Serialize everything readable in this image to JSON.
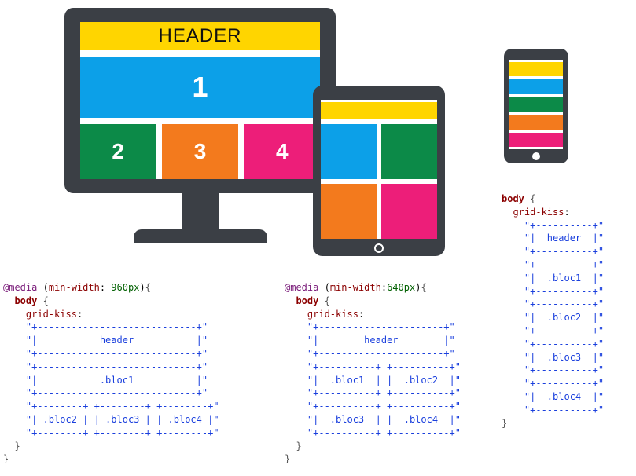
{
  "colors": {
    "device_frame": "#3b3f45",
    "header": "#ffd500",
    "bloc1": "#0ca0e8",
    "bloc2": "#0c8a48",
    "bloc3": "#f37a1d",
    "bloc4": "#ed1e79"
  },
  "monitor": {
    "header_label": "HEADER",
    "bloc1_label": "1",
    "bloc2_label": "2",
    "bloc3_label": "3",
    "bloc4_label": "4"
  },
  "code": {
    "desktop": {
      "media_line_pre": "@media",
      "media_cond_prop": "min-width",
      "media_cond_val": "960px",
      "body_kw": "body",
      "prop": "grid-kiss",
      "rows": [
        "\"+----------------------------+\"",
        "\"|           header           |\"",
        "\"+----------------------------+\"",
        "\"+----------------------------+\"",
        "\"|           .bloc1           |\"",
        "\"+----------------------------+\"",
        "\"+--------+ +--------+ +--------+\"",
        "\"| .bloc2 | | .bloc3 | | .bloc4 |\"",
        "\"+--------+ +--------+ +--------+\""
      ]
    },
    "tablet": {
      "media_line_pre": "@media",
      "media_cond_prop": "min-width",
      "media_cond_val": "640px",
      "body_kw": "body",
      "prop": "grid-kiss",
      "rows": [
        "\"+----------------------+\"",
        "\"|        header        |\"",
        "\"+----------------------+\"",
        "\"+----------+ +----------+\"",
        "\"|  .bloc1  | |  .bloc2  |\"",
        "\"+----------+ +----------+\"",
        "\"+----------+ +----------+\"",
        "\"|  .bloc3  | |  .bloc4  |\"",
        "\"+----------+ +----------+\""
      ]
    },
    "mobile": {
      "body_kw": "body",
      "prop": "grid-kiss",
      "rows": [
        "\"+----------+\"",
        "\"|  header  |\"",
        "\"+----------+\"",
        "\"+----------+\"",
        "\"|  .bloc1  |\"",
        "\"+----------+\"",
        "\"+----------+\"",
        "\"|  .bloc2  |\"",
        "\"+----------+\"",
        "\"+----------+\"",
        "\"|  .bloc3  |\"",
        "\"+----------+\"",
        "\"+----------+\"",
        "\"|  .bloc4  |\"",
        "\"+----------+\""
      ]
    }
  }
}
